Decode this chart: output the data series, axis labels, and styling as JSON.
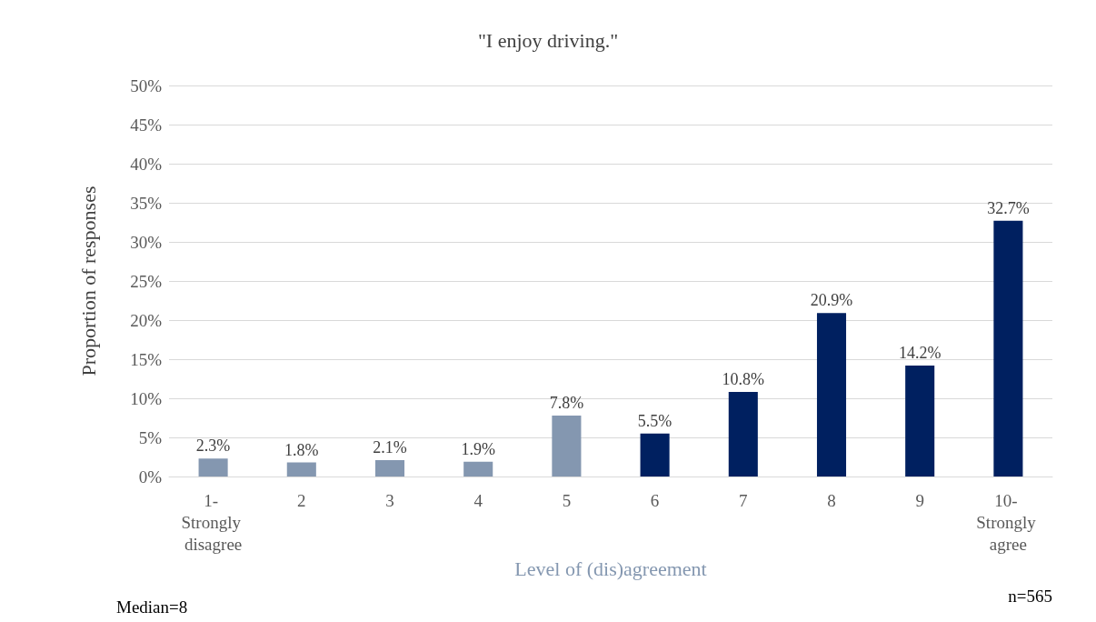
{
  "chart_data": {
    "type": "bar",
    "title": "\"I enjoy driving.\"",
    "xlabel": "Level of (dis)agreement",
    "ylabel": "Proportion of responses",
    "categories": [
      "1- Strongly disagree",
      "2",
      "3",
      "4",
      "5",
      "6",
      "7",
      "8",
      "9",
      "10- Strongly agree"
    ],
    "values": [
      2.3,
      1.8,
      2.1,
      1.9,
      7.8,
      5.5,
      10.8,
      20.9,
      14.2,
      32.7
    ],
    "value_labels": [
      "2.3%",
      "1.8%",
      "2.1%",
      "1.9%",
      "7.8%",
      "5.5%",
      "10.8%",
      "20.9%",
      "14.2%",
      "32.7%"
    ],
    "colors": [
      "#8497b0",
      "#8497b0",
      "#8497b0",
      "#8497b0",
      "#8497b0",
      "#002060",
      "#002060",
      "#002060",
      "#002060",
      "#002060"
    ],
    "ylim": [
      0,
      50
    ],
    "yticks": [
      {
        "value": 0,
        "label": "0%"
      },
      {
        "value": 5,
        "label": "5%"
      },
      {
        "value": 10,
        "label": "10%"
      },
      {
        "value": 15,
        "label": "15%"
      },
      {
        "value": 20,
        "label": "20%"
      },
      {
        "value": 25,
        "label": "25%"
      },
      {
        "value": 30,
        "label": "30%"
      },
      {
        "value": 35,
        "label": "35%"
      },
      {
        "value": 40,
        "label": "40%"
      },
      {
        "value": 45,
        "label": "45%"
      },
      {
        "value": 50,
        "label": "50%"
      }
    ],
    "grid": "y",
    "annotations": [
      "Median=8",
      "n=565"
    ]
  }
}
